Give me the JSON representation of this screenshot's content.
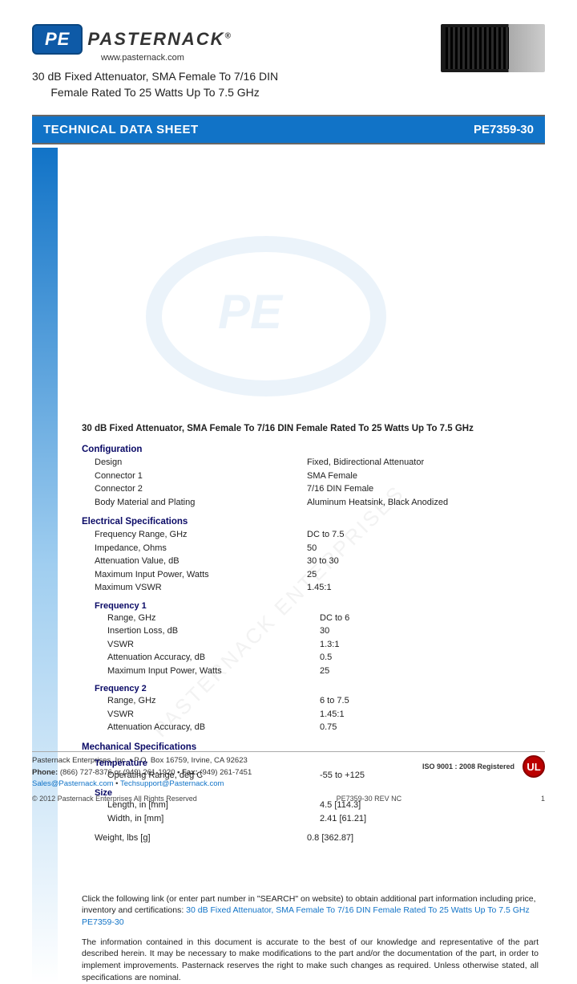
{
  "header": {
    "logo_initials": "PE",
    "brand": "PASTERNACK",
    "website": "www.pasternack.com",
    "title_line1": "30 dB Fixed Attenuator, SMA Female To 7/16 DIN",
    "title_line2": "Female Rated To 25 Watts Up To 7.5 GHz"
  },
  "bar": {
    "title": "TECHNICAL DATA SHEET",
    "part": "PE7359-30"
  },
  "main_title": "30 dB Fixed Attenuator, SMA Female To 7/16 DIN Female Rated To 25 Watts Up To 7.5 GHz",
  "sections": {
    "configuration": {
      "heading": "Configuration",
      "rows": [
        {
          "label": "Design",
          "value": "Fixed, Bidirectional Attenuator"
        },
        {
          "label": "Connector 1",
          "value": "SMA Female"
        },
        {
          "label": "Connector 2",
          "value": "7/16 DIN Female"
        },
        {
          "label": "Body Material and Plating",
          "value": "Aluminum Heatsink, Black Anodized"
        }
      ]
    },
    "electrical": {
      "heading": "Electrical Specifications",
      "rows": [
        {
          "label": "Frequency Range, GHz",
          "value": "DC to 7.5"
        },
        {
          "label": "Impedance, Ohms",
          "value": "50"
        },
        {
          "label": "Attenuation Value, dB",
          "value": "30 to 30"
        },
        {
          "label": "Maximum Input Power, Watts",
          "value": "25"
        },
        {
          "label": "Maximum VSWR",
          "value": "1.45:1"
        }
      ]
    },
    "freq1": {
      "heading": "Frequency 1",
      "rows": [
        {
          "label": "Range, GHz",
          "value": "DC to 6"
        },
        {
          "label": "Insertion Loss, dB",
          "value": "30"
        },
        {
          "label": "VSWR",
          "value": "1.3:1"
        },
        {
          "label": "Attenuation Accuracy, dB",
          "value": "0.5"
        },
        {
          "label": "Maximum Input Power, Watts",
          "value": "25"
        }
      ]
    },
    "freq2": {
      "heading": "Frequency 2",
      "rows": [
        {
          "label": "Range, GHz",
          "value": "6 to 7.5"
        },
        {
          "label": "VSWR",
          "value": "1.45:1"
        },
        {
          "label": "Attenuation Accuracy, dB",
          "value": "0.75"
        }
      ]
    },
    "mechanical": {
      "heading": "Mechanical Specifications",
      "temperature": {
        "heading": "Temperature",
        "rows": [
          {
            "label": "Operating Range, deg C",
            "value": "-55 to +125"
          }
        ]
      },
      "size": {
        "heading": "Size",
        "rows": [
          {
            "label": "Length, in [mm]",
            "value": "4.5 [114.3]"
          },
          {
            "label": "Width, in [mm]",
            "value": "2.41 [61.21]"
          }
        ]
      },
      "weight_row": {
        "label": "Weight, lbs [g]",
        "value": "0.8 [362.87]"
      }
    }
  },
  "link_block": {
    "intro": "Click the following link (or enter part number in \"SEARCH\" on website) to obtain additional part information including price, inventory and certifications: ",
    "link_text": "30 dB Fixed Attenuator, SMA Female To 7/16 DIN Female Rated To 25 Watts Up To 7.5 GHz PE7359-30"
  },
  "disclaimer": "The information contained in this document is accurate to the best of our knowledge and representative of the part described herein. It may be necessary to make modifications to the part and/or the documentation of the part, in order to implement improvements. Pasternack reserves the right to make such changes as required.  Unless otherwise stated, all specifications are nominal.",
  "footer": {
    "company": "Pasternack Enterprises, Inc. • P.O. Box 16759, Irvine, CA 92623",
    "phone_label": "Phone: ",
    "phone": "(866) 727-8376 or (949) 261-1920",
    "fax_label": " • Fax: ",
    "fax": "(949) 261-7451",
    "email1": "Sales@Pasternack.com",
    "email_sep": " • ",
    "email2": "Techsupport@Pasternack.com",
    "iso": "ISO 9001 : 2008 Registered",
    "ul": "UL",
    "copyright": "© 2012 Pasternack Enterprises All Rights Reserved",
    "rev": "PE7359-30  REV NC",
    "page": "1"
  },
  "watermark": "PASTERNACK ENTERPRISES",
  "colors": {
    "blue": "#1173c7",
    "dark_heading": "#0a0a66"
  }
}
